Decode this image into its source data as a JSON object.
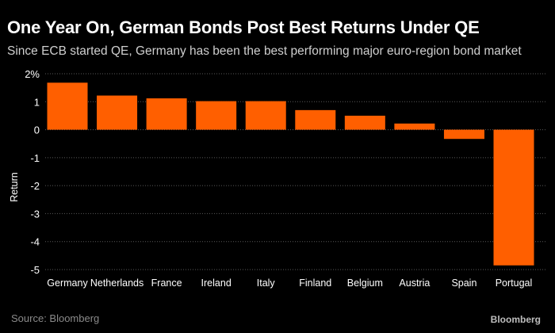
{
  "header": {
    "title": "One Year On, German Bonds Post Best Returns Under QE",
    "subtitle": "Since ECB started QE, Germany has been the best performing major euro-region bond market"
  },
  "footer": {
    "source": "Source: Bloomberg",
    "logo": "Bloomberg"
  },
  "colors": {
    "bar": "#ff5f00",
    "background": "#000000",
    "grid": "#5a5a5a"
  },
  "chart_data": {
    "type": "bar",
    "title": "One Year On, German Bonds Post Best Returns Under QE",
    "subtitle": "Since ECB started QE, Germany has been the best performing major euro-region bond market",
    "xlabel": "",
    "ylabel": "Return",
    "ylim": [
      -5,
      2
    ],
    "yticks": [
      2,
      1,
      0,
      -1,
      -2,
      -3,
      -4,
      -5
    ],
    "ytick_labels": [
      "2%",
      "1",
      "0",
      "-1",
      "-2",
      "-3",
      "-4",
      "-5"
    ],
    "grid": "horizontal dotted",
    "categories": [
      "Germany",
      "Netherlands",
      "France",
      "Ireland",
      "Italy",
      "Finland",
      "Belgium",
      "Austria",
      "Spain",
      "Portugal"
    ],
    "values": [
      1.68,
      1.22,
      1.12,
      1.02,
      1.02,
      0.7,
      0.5,
      0.22,
      -0.33,
      -4.85
    ]
  }
}
